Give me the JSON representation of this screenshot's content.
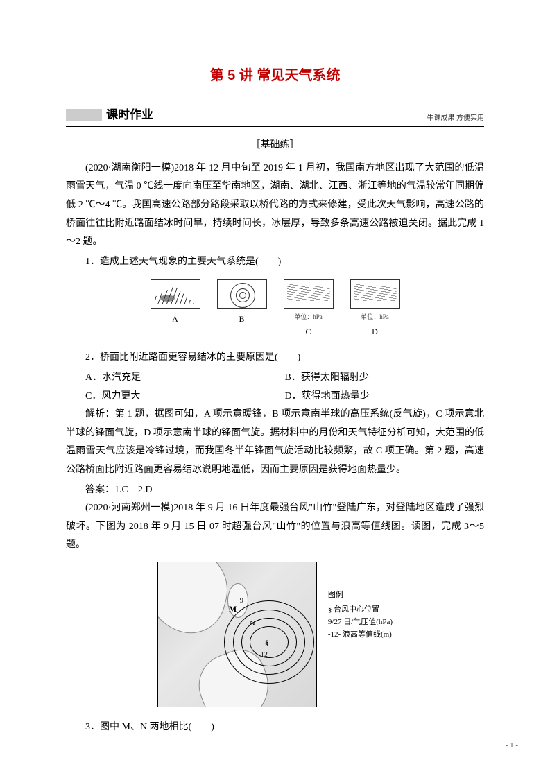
{
  "title": "第 5 讲 常见天气系统",
  "section": {
    "label": "课时作业",
    "rightNote": "牛课成果 方便实用"
  },
  "subtitle": "［基础练］",
  "passage1": "(2020·湖南衡阳一模)2018 年 12 月中旬至 2019 年 1 月初，我国南方地区出现了大范围的低温雨雪天气，气温 0 ℃线一度向南压至华南地区，湖南、湖北、江西、浙江等地的气温较常年同期偏低 2 ℃～4 ℃。我国高速公路部分路段采取以桥代路的方式来修建，受此次天气影响，高速公路的桥面往往比附近路面结冰时间早，持续时间长，冰层厚，导致多条高速公路被迫关闭。据此完成 1～2 题。",
  "q1": "1．造成上述天气现象的主要天气系统是(　　)",
  "diagrams": {
    "labels": [
      "A",
      "B",
      "C",
      "D"
    ],
    "unitC": "单位：hPa",
    "unitD": "单位：hPa"
  },
  "q2": "2．桥面比附近路面更容易结冰的主要原因是(　　)",
  "q2opts": {
    "A": "A．水汽充足",
    "B": "B．获得太阳辐射少",
    "C": "C．风力更大",
    "D": "D．获得地面热量少"
  },
  "explain1": "解析：第 1 题，据图可知，A 项示意暖锋，B 项示意南半球的高压系统(反气旋)，C 项示意北半球的锋面气旋，D 项示意南半球的锋面气旋。据材料中的月份和天气特征分析可知，大范围的低温雨雪天气应该是冷锋过境，而我国冬半年锋面气旋活动比较频繁，故 C 项正确。第 2 题，高速公路桥面比附近路面更容易结冰说明地温低，因而主要原因是获得地面热量少。",
  "answer1": "答案：1.C　2.D",
  "passage2": "(2020·河南郑州一模)2018 年 9 月 16 日年度最强台风\"山竹\"登陆广东，对登陆地区造成了强烈破坏。下图为 2018 年 9 月 15 日 07 时超强台风\"山竹\"的位置与浪高等值线图。读图，完成 3～5 题。",
  "map": {
    "labelM": "M",
    "labelN": "N",
    "label9": "9",
    "label12": "12",
    "center": "§",
    "legend": {
      "title": "图例",
      "item1": "§ 台风中心位置",
      "item2": "9/27 日/气压值(hPa)",
      "item3": "-12- 浪高等值线(m)"
    }
  },
  "q3": "3．图中 M、N 两地相比(　　)",
  "pageNum": "- 1 -"
}
